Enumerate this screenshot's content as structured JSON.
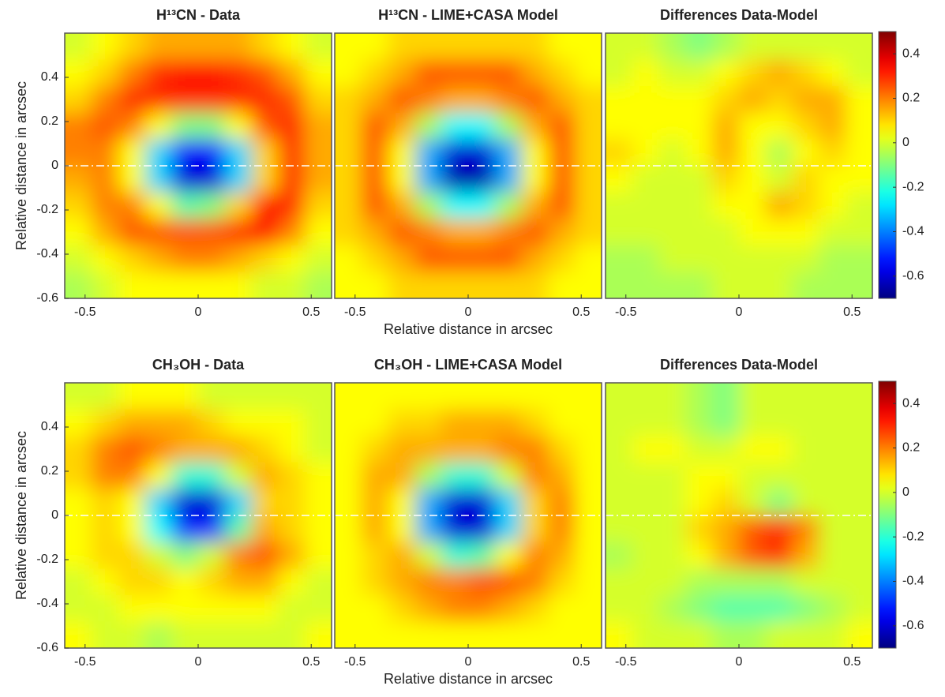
{
  "chart_data": [
    {
      "type": "heatmap",
      "title": "H¹³CN - Data",
      "ylabel": "Relative distance in arcsec",
      "colormap": "jet",
      "xlim": [
        -0.59,
        0.59
      ],
      "ylim": [
        -0.6,
        0.6
      ],
      "clim": [
        -0.7,
        0.5
      ],
      "xticks": [
        -0.5,
        0,
        0.5
      ],
      "yticks": [
        -0.6,
        -0.4,
        -0.2,
        0,
        0.2,
        0.4
      ],
      "hline": 0,
      "z": [
        [
          0,
          0.05,
          0.1,
          0.15,
          0.15,
          0.15,
          0.15,
          0.1,
          0.05,
          0
        ],
        [
          0.05,
          0.1,
          0.2,
          0.3,
          0.35,
          0.35,
          0.3,
          0.25,
          0.15,
          0.05
        ],
        [
          0.1,
          0.2,
          0.3,
          0.3,
          0.3,
          0.3,
          0.3,
          0.3,
          0.25,
          0.1
        ],
        [
          0.2,
          0.25,
          0.2,
          0.05,
          -0.1,
          -0.1,
          0.05,
          0.25,
          0.3,
          0.15
        ],
        [
          0.2,
          0.2,
          0.05,
          -0.3,
          -0.55,
          -0.55,
          -0.3,
          0.1,
          0.3,
          0.15
        ],
        [
          0.15,
          0.2,
          0.05,
          -0.3,
          -0.6,
          -0.6,
          -0.3,
          0.1,
          0.3,
          0.15
        ],
        [
          0.1,
          0.2,
          0.2,
          0.05,
          -0.15,
          -0.1,
          0.1,
          0.35,
          0.3,
          0.1
        ],
        [
          0.05,
          0.15,
          0.25,
          0.25,
          0.25,
          0.25,
          0.3,
          0.35,
          0.2,
          0.05
        ],
        [
          0,
          0.05,
          0.1,
          0.15,
          0.2,
          0.2,
          0.15,
          0.1,
          0.05,
          0
        ],
        [
          -0.05,
          0,
          0.05,
          0.05,
          0.05,
          0.05,
          0.05,
          0,
          0,
          -0.05
        ]
      ]
    },
    {
      "type": "heatmap",
      "title": "H¹³CN - LIME+CASA Model",
      "xlabel": "Relative distance in arcsec",
      "colormap": "jet",
      "xlim": [
        -0.59,
        0.59
      ],
      "ylim": [
        -0.6,
        0.6
      ],
      "clim": [
        -0.7,
        0.5
      ],
      "xticks": [
        -0.5,
        0,
        0.5
      ],
      "hline": 0,
      "z": [
        [
          0.05,
          0.05,
          0.1,
          0.1,
          0.1,
          0.1,
          0.1,
          0.1,
          0.05,
          0.05
        ],
        [
          0.05,
          0.1,
          0.15,
          0.25,
          0.25,
          0.25,
          0.25,
          0.15,
          0.1,
          0.05
        ],
        [
          0.1,
          0.15,
          0.25,
          0.2,
          0.15,
          0.15,
          0.2,
          0.25,
          0.15,
          0.1
        ],
        [
          0.1,
          0.25,
          0.15,
          -0.05,
          -0.25,
          -0.25,
          -0.05,
          0.15,
          0.25,
          0.1
        ],
        [
          0.1,
          0.25,
          0.05,
          -0.35,
          -0.6,
          -0.6,
          -0.35,
          0.05,
          0.25,
          0.1
        ],
        [
          0.1,
          0.25,
          0.05,
          -0.35,
          -0.65,
          -0.65,
          -0.35,
          0.05,
          0.25,
          0.1
        ],
        [
          0.1,
          0.25,
          0.15,
          -0.05,
          -0.25,
          -0.25,
          -0.05,
          0.15,
          0.25,
          0.1
        ],
        [
          0.1,
          0.15,
          0.25,
          0.2,
          0.15,
          0.15,
          0.2,
          0.25,
          0.15,
          0.1
        ],
        [
          0.05,
          0.1,
          0.15,
          0.25,
          0.25,
          0.25,
          0.25,
          0.15,
          0.1,
          0.05
        ],
        [
          0.05,
          0.05,
          0.1,
          0.1,
          0.1,
          0.1,
          0.1,
          0.1,
          0.05,
          0.05
        ]
      ]
    },
    {
      "type": "heatmap",
      "title": "Differences Data-Model",
      "colormap": "jet",
      "xlim": [
        -0.59,
        0.59
      ],
      "ylim": [
        -0.6,
        0.6
      ],
      "clim": [
        -0.7,
        0.5
      ],
      "xticks": [
        -0.5,
        0,
        0.5
      ],
      "hline": 0,
      "colorbar_ticks": [
        -0.6,
        -0.4,
        -0.2,
        0,
        0.2,
        0.4
      ],
      "z": [
        [
          0,
          0,
          -0.05,
          -0.1,
          -0.05,
          0,
          0,
          0,
          0,
          0
        ],
        [
          0,
          0.05,
          0,
          0,
          0.05,
          0.1,
          0.15,
          0.1,
          0.05,
          0
        ],
        [
          0.05,
          0.05,
          0.05,
          0.05,
          0.1,
          0.15,
          0.1,
          0.15,
          0.15,
          0.05
        ],
        [
          0.05,
          0.05,
          0.05,
          0.05,
          0.15,
          0.05,
          0.05,
          0.1,
          0.15,
          0.05
        ],
        [
          0.1,
          0.05,
          0,
          0.05,
          0.15,
          0.05,
          -0.05,
          0.05,
          0.1,
          0.05
        ],
        [
          0.05,
          0,
          0,
          0,
          0.1,
          0.05,
          0,
          0.1,
          0.05,
          0.05
        ],
        [
          0,
          0,
          0,
          0,
          0.05,
          0.05,
          0.15,
          0.1,
          0.05,
          0
        ],
        [
          0,
          0,
          0,
          0,
          0,
          0.05,
          0.05,
          0.05,
          0,
          0
        ],
        [
          -0.05,
          -0.05,
          0,
          0,
          0,
          0,
          0,
          0,
          -0.05,
          -0.05
        ],
        [
          -0.05,
          -0.05,
          -0.05,
          -0.05,
          0,
          0,
          0,
          -0.05,
          -0.05,
          -0.05
        ]
      ]
    },
    {
      "type": "heatmap",
      "title": "CH₃OH - Data",
      "ylabel": "Relative distance in arcsec",
      "colormap": "jet",
      "xlim": [
        -0.59,
        0.59
      ],
      "ylim": [
        -0.6,
        0.6
      ],
      "clim": [
        -0.7,
        0.5
      ],
      "xticks": [
        -0.5,
        0,
        0.5
      ],
      "yticks": [
        -0.6,
        -0.4,
        -0.2,
        0,
        0.2,
        0.4
      ],
      "hline": 0,
      "z": [
        [
          0,
          0,
          0.05,
          0.05,
          0.05,
          0,
          0,
          0,
          0,
          0
        ],
        [
          0.05,
          0.1,
          0.15,
          0.15,
          0.15,
          0.1,
          0.05,
          0.05,
          0.05,
          0
        ],
        [
          0.1,
          0.2,
          0.25,
          0.2,
          0.15,
          0.15,
          0.15,
          0.1,
          0.05,
          0
        ],
        [
          0.1,
          0.2,
          0.2,
          0.05,
          -0.2,
          -0.2,
          0,
          0.15,
          0.1,
          0.05
        ],
        [
          0.05,
          0.1,
          0.05,
          -0.3,
          -0.6,
          -0.6,
          -0.3,
          0.1,
          0.1,
          0.05
        ],
        [
          0.05,
          0.1,
          0.05,
          -0.25,
          -0.5,
          -0.5,
          -0.15,
          0.15,
          0.1,
          0.05
        ],
        [
          0.05,
          0.1,
          0.1,
          0,
          -0.1,
          0,
          0.2,
          0.25,
          0.15,
          0.05
        ],
        [
          0,
          0.05,
          0.1,
          0.1,
          0.05,
          0.1,
          0.15,
          0.15,
          0.05,
          0
        ],
        [
          0,
          0,
          0.05,
          0.05,
          0.05,
          0.05,
          0.05,
          0.05,
          0,
          0
        ],
        [
          0.05,
          0,
          0,
          -0.05,
          0,
          0,
          0,
          0,
          0,
          0.05
        ]
      ]
    },
    {
      "type": "heatmap",
      "title": "CH₃OH - LIME+CASA Model",
      "xlabel": "Relative distance in arcsec",
      "colormap": "jet",
      "xlim": [
        -0.59,
        0.59
      ],
      "ylim": [
        -0.6,
        0.6
      ],
      "clim": [
        -0.7,
        0.5
      ],
      "xticks": [
        -0.5,
        0,
        0.5
      ],
      "hline": 0,
      "z": [
        [
          0.05,
          0.05,
          0.05,
          0.05,
          0.05,
          0.05,
          0.05,
          0.05,
          0.05,
          0.05
        ],
        [
          0.05,
          0.05,
          0.1,
          0.1,
          0.15,
          0.15,
          0.15,
          0.1,
          0.05,
          0.05
        ],
        [
          0.05,
          0.1,
          0.15,
          0.15,
          0.15,
          0.15,
          0.2,
          0.2,
          0.1,
          0.05
        ],
        [
          0.05,
          0.15,
          0.15,
          -0.05,
          -0.2,
          -0.2,
          0,
          0.2,
          0.15,
          0.05
        ],
        [
          0.05,
          0.15,
          0.05,
          -0.35,
          -0.6,
          -0.6,
          -0.3,
          0.1,
          0.2,
          0.05
        ],
        [
          0.05,
          0.15,
          0.05,
          -0.35,
          -0.6,
          -0.6,
          -0.3,
          0.1,
          0.2,
          0.05
        ],
        [
          0.05,
          0.1,
          0.15,
          0,
          -0.2,
          -0.15,
          0.05,
          0.2,
          0.15,
          0.05
        ],
        [
          0.05,
          0.1,
          0.15,
          0.2,
          0.2,
          0.25,
          0.25,
          0.2,
          0.1,
          0.05
        ],
        [
          0.05,
          0.05,
          0.1,
          0.15,
          0.2,
          0.2,
          0.15,
          0.1,
          0.05,
          0.05
        ],
        [
          0.05,
          0.05,
          0.05,
          0.05,
          0.05,
          0.05,
          0.05,
          0.05,
          0.05,
          0.05
        ]
      ]
    },
    {
      "type": "heatmap",
      "title": "Differences Data-Model",
      "colormap": "jet",
      "xlim": [
        -0.59,
        0.59
      ],
      "ylim": [
        -0.6,
        0.6
      ],
      "clim": [
        -0.7,
        0.5
      ],
      "xticks": [
        -0.5,
        0,
        0.5
      ],
      "hline": 0,
      "colorbar_ticks": [
        -0.6,
        -0.4,
        -0.2,
        0,
        0.2,
        0.4
      ],
      "z": [
        [
          0,
          0,
          0,
          -0.05,
          -0.1,
          0,
          0,
          0,
          0,
          0
        ],
        [
          0,
          0,
          0,
          -0.05,
          -0.1,
          0,
          0,
          0,
          0,
          0
        ],
        [
          0,
          0.05,
          0.05,
          0,
          0,
          0.05,
          0.05,
          0,
          0,
          0
        ],
        [
          0,
          0,
          0,
          0.05,
          0.05,
          0,
          0,
          0,
          0,
          0
        ],
        [
          0,
          0,
          0,
          0.05,
          0.1,
          0,
          -0.1,
          0,
          0,
          0
        ],
        [
          0,
          0,
          0,
          0.1,
          0.15,
          0.25,
          0.3,
          0.2,
          0,
          0
        ],
        [
          -0.05,
          0,
          0,
          0.05,
          0.15,
          0.25,
          0.3,
          0.15,
          0,
          0
        ],
        [
          0,
          0,
          0,
          -0.05,
          -0.05,
          -0.05,
          -0.05,
          0,
          0,
          0
        ],
        [
          0,
          0,
          -0.05,
          -0.1,
          -0.15,
          -0.15,
          -0.15,
          -0.1,
          -0.05,
          0
        ],
        [
          0.05,
          0,
          0,
          0,
          -0.05,
          -0.05,
          0,
          0,
          0,
          0.05
        ]
      ]
    }
  ]
}
